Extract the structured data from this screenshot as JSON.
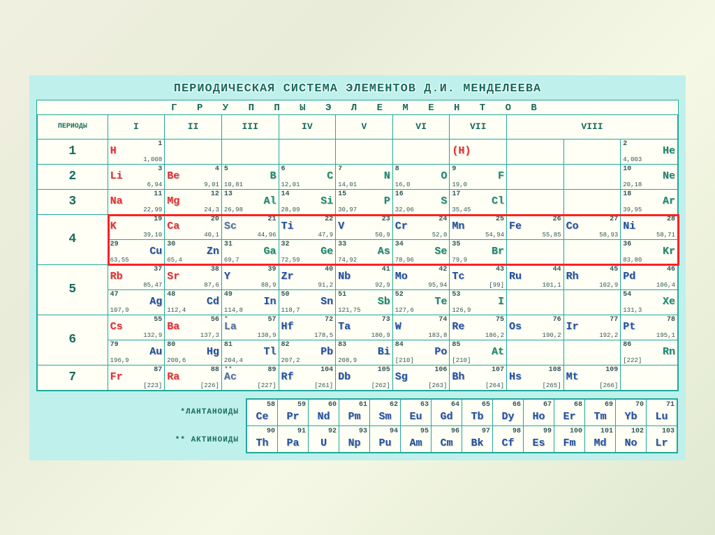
{
  "title": "ПЕРИОДИЧЕСКАЯ СИСТЕМА ЭЛЕМЕНТОВ Д.И. МЕНДЕЛЕЕВА",
  "subtitle": "Г Р У П П Ы   Э Л Е М Е Н Т О В",
  "periods_header": "ПЕРИОДЫ",
  "groups": [
    "I",
    "II",
    "III",
    "IV",
    "V",
    "VI",
    "VII",
    "VIII"
  ],
  "period_labels": [
    "1",
    "2",
    "3",
    "4",
    "5",
    "6",
    "7"
  ],
  "lanth_label": "*ЛАНТАНОИДЫ",
  "act_label": "** АКТИНОИДЫ",
  "colors": {
    "background": "#bff0ec",
    "cell_bg": "#fffff5",
    "border": "#1fa89a",
    "highlight": "#ff2020",
    "text_header": "#1a6b5e",
    "red": "#e63030",
    "blue": "#2050a0",
    "teal": "#1a8b6e",
    "green": "#3aa050",
    "steel": "#5070a0"
  },
  "highlight_row": 4,
  "rows": [
    {
      "period": "1",
      "sub": "a",
      "cells": [
        {
          "col": 1,
          "sym": "H",
          "num": "1",
          "mass": "1,008",
          "pos": "left",
          "cls": "c-red"
        },
        {
          "col": 7,
          "sym": "(H)",
          "num": "",
          "mass": "",
          "pos": "left",
          "cls": "c-red"
        },
        {
          "col": 10,
          "sym": "He",
          "num": "2",
          "mass": "4,003",
          "pos": "right",
          "cls": "c-teal"
        }
      ]
    },
    {
      "period": "2",
      "sub": "a",
      "cells": [
        {
          "col": 1,
          "sym": "Li",
          "num": "3",
          "mass": "6,94",
          "pos": "left",
          "cls": "c-red"
        },
        {
          "col": 2,
          "sym": "Be",
          "num": "4",
          "mass": "9,01",
          "pos": "left",
          "cls": "c-red"
        },
        {
          "col": 3,
          "sym": "B",
          "num": "5",
          "mass": "10,81",
          "pos": "right",
          "cls": "c-teal"
        },
        {
          "col": 4,
          "sym": "C",
          "num": "6",
          "mass": "12,01",
          "pos": "right",
          "cls": "c-teal"
        },
        {
          "col": 5,
          "sym": "N",
          "num": "7",
          "mass": "14,01",
          "pos": "right",
          "cls": "c-teal"
        },
        {
          "col": 6,
          "sym": "O",
          "num": "8",
          "mass": "16,0",
          "pos": "right",
          "cls": "c-teal"
        },
        {
          "col": 7,
          "sym": "F",
          "num": "9",
          "mass": "19,0",
          "pos": "right",
          "cls": "c-teal"
        },
        {
          "col": 10,
          "sym": "Ne",
          "num": "10",
          "mass": "20,18",
          "pos": "right",
          "cls": "c-teal"
        }
      ]
    },
    {
      "period": "3",
      "sub": "a",
      "cells": [
        {
          "col": 1,
          "sym": "Na",
          "num": "11",
          "mass": "22,99",
          "pos": "left",
          "cls": "c-red"
        },
        {
          "col": 2,
          "sym": "Mg",
          "num": "12",
          "mass": "24,3",
          "pos": "left",
          "cls": "c-red"
        },
        {
          "col": 3,
          "sym": "Al",
          "num": "13",
          "mass": "26,98",
          "pos": "right",
          "cls": "c-teal"
        },
        {
          "col": 4,
          "sym": "Si",
          "num": "14",
          "mass": "28,09",
          "pos": "right",
          "cls": "c-teal"
        },
        {
          "col": 5,
          "sym": "P",
          "num": "15",
          "mass": "30,97",
          "pos": "right",
          "cls": "c-teal"
        },
        {
          "col": 6,
          "sym": "S",
          "num": "16",
          "mass": "32,06",
          "pos": "right",
          "cls": "c-teal"
        },
        {
          "col": 7,
          "sym": "Cl",
          "num": "17",
          "mass": "35,45",
          "pos": "right",
          "cls": "c-teal"
        },
        {
          "col": 10,
          "sym": "Ar",
          "num": "18",
          "mass": "39,95",
          "pos": "right",
          "cls": "c-teal"
        }
      ]
    },
    {
      "period": "4",
      "sub": "a",
      "hl": true,
      "cells": [
        {
          "col": 1,
          "sym": "K",
          "num": "19",
          "mass": "39,10",
          "pos": "left",
          "cls": "c-red"
        },
        {
          "col": 2,
          "sym": "Ca",
          "num": "20",
          "mass": "40,1",
          "pos": "left",
          "cls": "c-red"
        },
        {
          "col": 3,
          "sym": "Sc",
          "num": "21",
          "mass": "44,96",
          "pos": "left",
          "cls": "c-steel"
        },
        {
          "col": 4,
          "sym": "Ti",
          "num": "22",
          "mass": "47,9",
          "pos": "left",
          "cls": "c-blue"
        },
        {
          "col": 5,
          "sym": "V",
          "num": "23",
          "mass": "50,9",
          "pos": "left",
          "cls": "c-blue"
        },
        {
          "col": 6,
          "sym": "Cr",
          "num": "24",
          "mass": "52,0",
          "pos": "left",
          "cls": "c-blue"
        },
        {
          "col": 7,
          "sym": "Mn",
          "num": "25",
          "mass": "54,94",
          "pos": "left",
          "cls": "c-blue"
        },
        {
          "col": 8,
          "sym": "Fe",
          "num": "26",
          "mass": "55,85",
          "pos": "left",
          "cls": "c-blue"
        },
        {
          "col": 9,
          "sym": "Co",
          "num": "27",
          "mass": "58,93",
          "pos": "left",
          "cls": "c-blue"
        },
        {
          "col": 10,
          "sym": "Ni",
          "num": "28",
          "mass": "58,71",
          "pos": "left",
          "cls": "c-blue"
        }
      ]
    },
    {
      "period": "4",
      "sub": "b",
      "hl": true,
      "cells": [
        {
          "col": 1,
          "sym": "Cu",
          "num": "29",
          "mass": "63,55",
          "pos": "right",
          "cls": "c-blue"
        },
        {
          "col": 2,
          "sym": "Zn",
          "num": "30",
          "mass": "65,4",
          "pos": "right",
          "cls": "c-blue"
        },
        {
          "col": 3,
          "sym": "Ga",
          "num": "31",
          "mass": "69,7",
          "pos": "right",
          "cls": "c-teal"
        },
        {
          "col": 4,
          "sym": "Ge",
          "num": "32",
          "mass": "72,59",
          "pos": "right",
          "cls": "c-teal"
        },
        {
          "col": 5,
          "sym": "As",
          "num": "33",
          "mass": "74,92",
          "pos": "right",
          "cls": "c-teal"
        },
        {
          "col": 6,
          "sym": "Se",
          "num": "34",
          "mass": "78,96",
          "pos": "right",
          "cls": "c-teal"
        },
        {
          "col": 7,
          "sym": "Br",
          "num": "35",
          "mass": "79,9",
          "pos": "right",
          "cls": "c-teal"
        },
        {
          "col": 10,
          "sym": "Kr",
          "num": "36",
          "mass": "83,80",
          "pos": "right",
          "cls": "c-teal"
        }
      ]
    },
    {
      "period": "5",
      "sub": "a",
      "cells": [
        {
          "col": 1,
          "sym": "Rb",
          "num": "37",
          "mass": "85,47",
          "pos": "left",
          "cls": "c-red"
        },
        {
          "col": 2,
          "sym": "Sr",
          "num": "38",
          "mass": "87,6",
          "pos": "left",
          "cls": "c-red"
        },
        {
          "col": 3,
          "sym": "Y",
          "num": "39",
          "mass": "88,9",
          "pos": "left",
          "cls": "c-blue"
        },
        {
          "col": 4,
          "sym": "Zr",
          "num": "40",
          "mass": "91,2",
          "pos": "left",
          "cls": "c-blue"
        },
        {
          "col": 5,
          "sym": "Nb",
          "num": "41",
          "mass": "92,9",
          "pos": "left",
          "cls": "c-blue"
        },
        {
          "col": 6,
          "sym": "Mo",
          "num": "42",
          "mass": "95,94",
          "pos": "left",
          "cls": "c-blue"
        },
        {
          "col": 7,
          "sym": "Tc",
          "num": "43",
          "mass": "[99]",
          "pos": "left",
          "cls": "c-blue"
        },
        {
          "col": 8,
          "sym": "Ru",
          "num": "44",
          "mass": "101,1",
          "pos": "left",
          "cls": "c-blue"
        },
        {
          "col": 9,
          "sym": "Rh",
          "num": "45",
          "mass": "102,9",
          "pos": "left",
          "cls": "c-blue"
        },
        {
          "col": 10,
          "sym": "Pd",
          "num": "46",
          "mass": "106,4",
          "pos": "left",
          "cls": "c-blue"
        }
      ]
    },
    {
      "period": "5",
      "sub": "b",
      "cells": [
        {
          "col": 1,
          "sym": "Ag",
          "num": "47",
          "mass": "107,9",
          "pos": "right",
          "cls": "c-blue"
        },
        {
          "col": 2,
          "sym": "Cd",
          "num": "48",
          "mass": "112,4",
          "pos": "right",
          "cls": "c-blue"
        },
        {
          "col": 3,
          "sym": "In",
          "num": "49",
          "mass": "114,8",
          "pos": "right",
          "cls": "c-blue"
        },
        {
          "col": 4,
          "sym": "Sn",
          "num": "50",
          "mass": "118,7",
          "pos": "right",
          "cls": "c-blue"
        },
        {
          "col": 5,
          "sym": "Sb",
          "num": "51",
          "mass": "121,75",
          "pos": "right",
          "cls": "c-teal"
        },
        {
          "col": 6,
          "sym": "Te",
          "num": "52",
          "mass": "127,6",
          "pos": "right",
          "cls": "c-teal"
        },
        {
          "col": 7,
          "sym": "I",
          "num": "53",
          "mass": "126,9",
          "pos": "right",
          "cls": "c-teal"
        },
        {
          "col": 10,
          "sym": "Xe",
          "num": "54",
          "mass": "131,3",
          "pos": "right",
          "cls": "c-teal"
        }
      ]
    },
    {
      "period": "6",
      "sub": "a",
      "cells": [
        {
          "col": 1,
          "sym": "Cs",
          "num": "55",
          "mass": "132,9",
          "pos": "left",
          "cls": "c-red"
        },
        {
          "col": 2,
          "sym": "Ba",
          "num": "56",
          "mass": "137,3",
          "pos": "left",
          "cls": "c-red"
        },
        {
          "col": 3,
          "sym": "La",
          "num": "57",
          "mass": "138,9",
          "pos": "left",
          "cls": "c-steel",
          "ast": "*"
        },
        {
          "col": 4,
          "sym": "Hf",
          "num": "72",
          "mass": "178,5",
          "pos": "left",
          "cls": "c-blue"
        },
        {
          "col": 5,
          "sym": "Ta",
          "num": "73",
          "mass": "180,9",
          "pos": "left",
          "cls": "c-blue"
        },
        {
          "col": 6,
          "sym": "W",
          "num": "74",
          "mass": "183,8",
          "pos": "left",
          "cls": "c-blue"
        },
        {
          "col": 7,
          "sym": "Re",
          "num": "75",
          "mass": "186,2",
          "pos": "left",
          "cls": "c-blue"
        },
        {
          "col": 8,
          "sym": "Os",
          "num": "76",
          "mass": "190,2",
          "pos": "left",
          "cls": "c-blue"
        },
        {
          "col": 9,
          "sym": "Ir",
          "num": "77",
          "mass": "192,2",
          "pos": "left",
          "cls": "c-blue"
        },
        {
          "col": 10,
          "sym": "Pt",
          "num": "78",
          "mass": "195,1",
          "pos": "left",
          "cls": "c-blue"
        }
      ]
    },
    {
      "period": "6",
      "sub": "b",
      "cells": [
        {
          "col": 1,
          "sym": "Au",
          "num": "79",
          "mass": "196,9",
          "pos": "right",
          "cls": "c-blue"
        },
        {
          "col": 2,
          "sym": "Hg",
          "num": "80",
          "mass": "200,6",
          "pos": "right",
          "cls": "c-blue"
        },
        {
          "col": 3,
          "sym": "Tl",
          "num": "81",
          "mass": "204,4",
          "pos": "right",
          "cls": "c-blue"
        },
        {
          "col": 4,
          "sym": "Pb",
          "num": "82",
          "mass": "207,2",
          "pos": "right",
          "cls": "c-blue"
        },
        {
          "col": 5,
          "sym": "Bi",
          "num": "83",
          "mass": "208,9",
          "pos": "right",
          "cls": "c-blue"
        },
        {
          "col": 6,
          "sym": "Po",
          "num": "84",
          "mass": "[210]",
          "pos": "right",
          "cls": "c-blue"
        },
        {
          "col": 7,
          "sym": "At",
          "num": "85",
          "mass": "[210]",
          "pos": "right",
          "cls": "c-teal"
        },
        {
          "col": 10,
          "sym": "Rn",
          "num": "86",
          "mass": "[222]",
          "pos": "right",
          "cls": "c-teal"
        }
      ]
    },
    {
      "period": "7",
      "sub": "a",
      "cells": [
        {
          "col": 1,
          "sym": "Fr",
          "num": "87",
          "mass": "[223]",
          "pos": "left",
          "cls": "c-red"
        },
        {
          "col": 2,
          "sym": "Ra",
          "num": "88",
          "mass": "[226]",
          "pos": "left",
          "cls": "c-red"
        },
        {
          "col": 3,
          "sym": "Ac",
          "num": "89",
          "mass": "[227]",
          "pos": "left",
          "cls": "c-steel",
          "ast": "**"
        },
        {
          "col": 4,
          "sym": "Rf",
          "num": "104",
          "mass": "[261]",
          "pos": "left",
          "cls": "c-blue"
        },
        {
          "col": 5,
          "sym": "Db",
          "num": "105",
          "mass": "[262]",
          "pos": "left",
          "cls": "c-blue"
        },
        {
          "col": 6,
          "sym": "Sg",
          "num": "106",
          "mass": "[263]",
          "pos": "left",
          "cls": "c-blue"
        },
        {
          "col": 7,
          "sym": "Bh",
          "num": "107",
          "mass": "[264]",
          "pos": "left",
          "cls": "c-blue"
        },
        {
          "col": 8,
          "sym": "Hs",
          "num": "108",
          "mass": "[265]",
          "pos": "left",
          "cls": "c-blue"
        },
        {
          "col": 9,
          "sym": "Mt",
          "num": "109",
          "mass": "[266]",
          "pos": "left",
          "cls": "c-blue"
        }
      ]
    }
  ],
  "lanthanides": [
    {
      "num": "58",
      "sym": "Ce",
      "cls": "c-blue"
    },
    {
      "num": "59",
      "sym": "Pr",
      "cls": "c-blue"
    },
    {
      "num": "60",
      "sym": "Nd",
      "cls": "c-blue"
    },
    {
      "num": "61",
      "sym": "Pm",
      "cls": "c-blue"
    },
    {
      "num": "62",
      "sym": "Sm",
      "cls": "c-blue"
    },
    {
      "num": "63",
      "sym": "Eu",
      "cls": "c-blue"
    },
    {
      "num": "64",
      "sym": "Gd",
      "cls": "c-blue"
    },
    {
      "num": "65",
      "sym": "Tb",
      "cls": "c-blue"
    },
    {
      "num": "66",
      "sym": "Dy",
      "cls": "c-blue"
    },
    {
      "num": "67",
      "sym": "Ho",
      "cls": "c-blue"
    },
    {
      "num": "68",
      "sym": "Er",
      "cls": "c-blue"
    },
    {
      "num": "69",
      "sym": "Tm",
      "cls": "c-blue"
    },
    {
      "num": "70",
      "sym": "Yb",
      "cls": "c-blue"
    },
    {
      "num": "71",
      "sym": "Lu",
      "cls": "c-blue"
    }
  ],
  "actinides": [
    {
      "num": "90",
      "sym": "Th",
      "cls": "c-blue"
    },
    {
      "num": "91",
      "sym": "Pa",
      "cls": "c-blue"
    },
    {
      "num": "92",
      "sym": "U",
      "cls": "c-blue"
    },
    {
      "num": "93",
      "sym": "Np",
      "cls": "c-blue"
    },
    {
      "num": "94",
      "sym": "Pu",
      "cls": "c-blue"
    },
    {
      "num": "95",
      "sym": "Am",
      "cls": "c-blue"
    },
    {
      "num": "96",
      "sym": "Cm",
      "cls": "c-blue"
    },
    {
      "num": "97",
      "sym": "Bk",
      "cls": "c-blue"
    },
    {
      "num": "98",
      "sym": "Cf",
      "cls": "c-blue"
    },
    {
      "num": "99",
      "sym": "Es",
      "cls": "c-blue"
    },
    {
      "num": "100",
      "sym": "Fm",
      "cls": "c-blue"
    },
    {
      "num": "101",
      "sym": "Md",
      "cls": "c-blue"
    },
    {
      "num": "102",
      "sym": "No",
      "cls": "c-blue"
    },
    {
      "num": "103",
      "sym": "Lr",
      "cls": "c-blue"
    }
  ]
}
